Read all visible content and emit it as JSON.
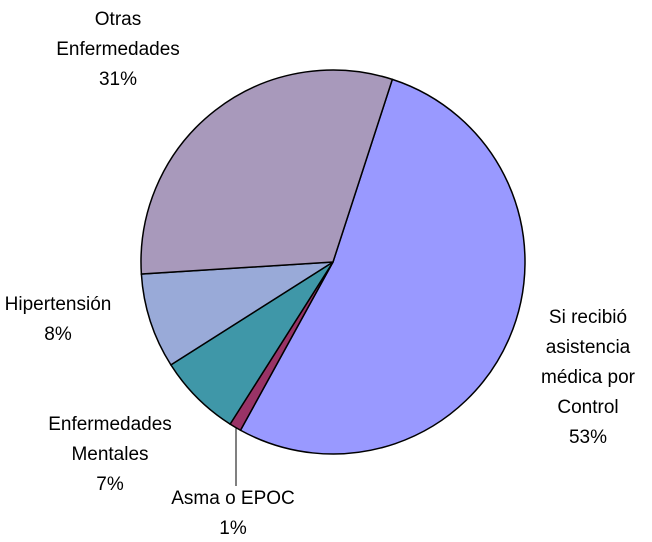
{
  "chart_data": {
    "type": "pie",
    "categories": [
      "Si recibió asistencia médica por Control",
      "Asma o EPOC",
      "Enfermedades Mentales",
      "Hipertensión",
      "Otras Enfermedades"
    ],
    "values": [
      53,
      1,
      7,
      8,
      31
    ],
    "value_labels": [
      "53%",
      "1%",
      "7%",
      "8%",
      "31%"
    ],
    "colors": [
      "#9999ff",
      "#993366",
      "#3f97a8",
      "#99aad8",
      "#a899bb"
    ]
  }
}
